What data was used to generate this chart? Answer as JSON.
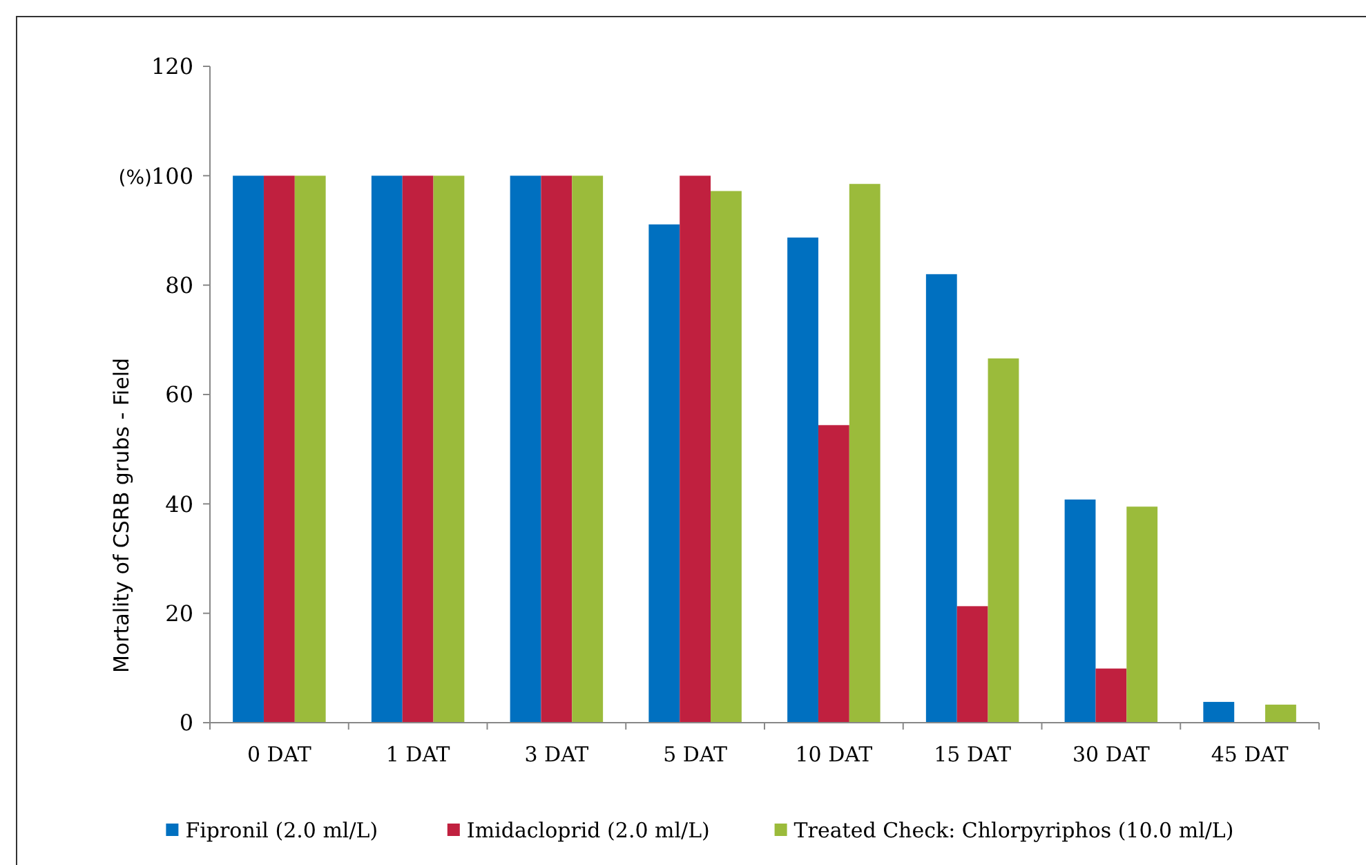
{
  "chart_data": {
    "type": "bar",
    "ylabel": "Mortality of CSRB grubs - Field",
    "annotations": [
      "(%)"
    ],
    "categories": [
      "0 DAT",
      "1 DAT",
      "3 DAT",
      "5 DAT",
      "10 DAT",
      "15 DAT",
      "30 DAT",
      "45 DAT"
    ],
    "series": [
      {
        "name": "Fipronil (2.0 ml/L)",
        "color": "#0070c0",
        "values": [
          100,
          100,
          100,
          91.1,
          88.7,
          82,
          40.8,
          3.8
        ]
      },
      {
        "name": "Imidacloprid (2.0 ml/L)",
        "color": "#c0203f",
        "values": [
          100,
          100,
          100,
          100,
          54.4,
          21.3,
          9.9,
          0
        ]
      },
      {
        "name": "Treated Check: Chlorpyriphos (10.0 ml/L)",
        "color": "#9bbb3b",
        "values": [
          100,
          100,
          100,
          97.2,
          98.5,
          66.6,
          39.5,
          3.3
        ]
      }
    ],
    "ylim": [
      0,
      120
    ],
    "yticks": [
      0,
      20,
      40,
      60,
      80,
      100,
      120
    ],
    "grid": false,
    "legend": "bottom"
  }
}
